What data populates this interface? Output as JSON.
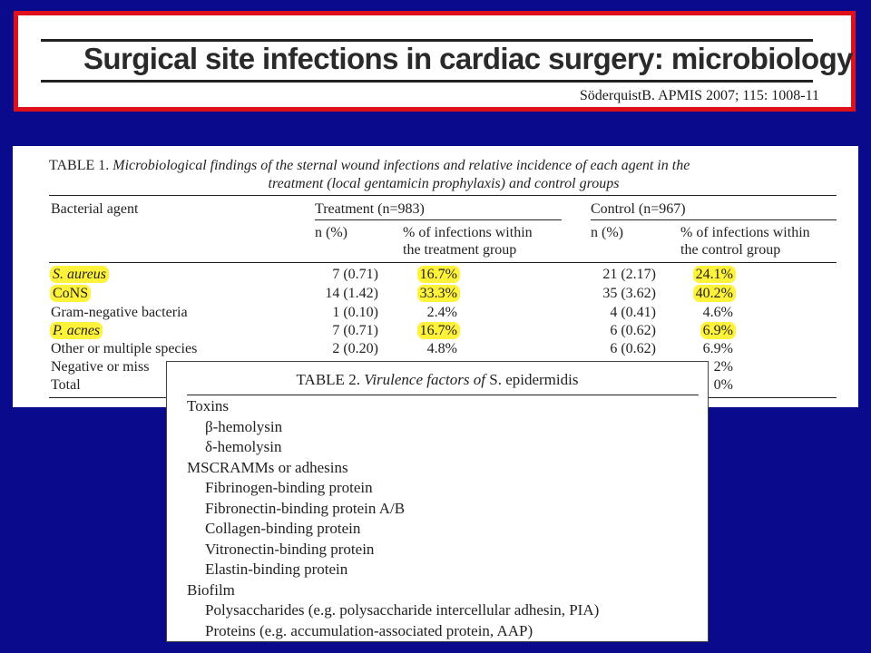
{
  "slide": {
    "title": "Surgical site infections in cardiac surgery: microbiology",
    "citation": "SöderquistB. APMIS 2007; 115: 1008-11"
  },
  "table1": {
    "label": "TABLE 1.",
    "caption_line1": "Microbiological findings of the sternal wound infections and relative incidence of each agent in the",
    "caption_line2": "treatment (local gentamicin prophylaxis) and control groups",
    "headers": {
      "agent": "Bacterial agent",
      "treatment": "Treatment (n=983)",
      "control": "Control (n=967)",
      "n_pct_treatment": "n (%)",
      "pct_inf_treatment_1": "% of infections within",
      "pct_inf_treatment_2": "the treatment group",
      "n_pct_control": "n (%)",
      "pct_inf_control_1": "% of infections within",
      "pct_inf_control_2": "the control group"
    },
    "rows": [
      {
        "agent": "S. aureus",
        "t_n": "7 (0.71)",
        "t_pct": "16.7%",
        "c_n": "21 (2.17)",
        "c_pct": "24.1%"
      },
      {
        "agent": "CoNS",
        "t_n": "14 (1.42)",
        "t_pct": "33.3%",
        "c_n": "35 (3.62)",
        "c_pct": "40.2%"
      },
      {
        "agent": "Gram-negative bacteria",
        "t_n": "1 (0.10)",
        "t_pct": "2.4%",
        "c_n": "4 (0.41)",
        "c_pct": "4.6%"
      },
      {
        "agent": "P. acnes",
        "t_n": "7 (0.71)",
        "t_pct": "16.7%",
        "c_n": "6 (0.62)",
        "c_pct": "6.9%"
      },
      {
        "agent": "Other or multiple species",
        "t_n": "2 (0.20)",
        "t_pct": "4.8%",
        "c_n": "6 (0.62)",
        "c_pct": "6.9%"
      },
      {
        "agent": "Negative or miss",
        "t_n": "",
        "t_pct": "",
        "c_n": "",
        "c_pct": "2%"
      },
      {
        "agent": "Total",
        "t_n": "",
        "t_pct": "",
        "c_n": "",
        "c_pct": "0%"
      }
    ]
  },
  "table2": {
    "label": "TABLE 2.",
    "caption_italic": "Virulence factors of",
    "caption_species": "S. epidermidis",
    "items": [
      {
        "text": "Toxins",
        "sub": false
      },
      {
        "text": "β-hemolysin",
        "sub": true
      },
      {
        "text": "δ-hemolysin",
        "sub": true
      },
      {
        "text": "MSCRAMMs or adhesins",
        "sub": false
      },
      {
        "text": "Fibrinogen-binding protein",
        "sub": true
      },
      {
        "text": "Fibronectin-binding protein A/B",
        "sub": true
      },
      {
        "text": "Collagen-binding protein",
        "sub": true
      },
      {
        "text": "Vitronectin-binding protein",
        "sub": true
      },
      {
        "text": "Elastin-binding protein",
        "sub": true
      },
      {
        "text": "Biofilm",
        "sub": false
      },
      {
        "text": "Polysaccharides (e.g. polysaccharide intercellular adhesin, PIA)",
        "sub": true
      },
      {
        "text": "Proteins (e.g. accumulation-associated protein, AAP)",
        "sub": true
      }
    ]
  },
  "colors": {
    "background": "#0a0a8c",
    "title_border": "#e0101a",
    "highlight": "#fff23a"
  }
}
